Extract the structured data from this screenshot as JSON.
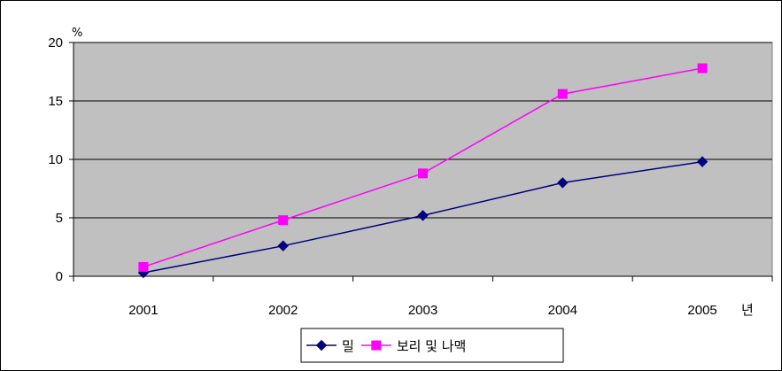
{
  "chart_data": {
    "type": "line",
    "title": "",
    "x": [
      "2001",
      "2002",
      "2003",
      "2004",
      "2005"
    ],
    "xlabel": "년",
    "ylabel": "%",
    "ylim": [
      0,
      20
    ],
    "yticks": [
      0,
      5,
      10,
      15,
      20
    ],
    "grid": "horizontal",
    "plot_background": "#c0c0c0",
    "legend_position": "bottom",
    "series": [
      {
        "name": "밀",
        "values": [
          0.3,
          2.6,
          5.2,
          8.0,
          9.8
        ],
        "color": "#000080",
        "marker": "diamond"
      },
      {
        "name": "보리 및 나맥",
        "values": [
          0.8,
          4.8,
          8.8,
          15.6,
          17.8
        ],
        "color": "#ff00ff",
        "marker": "square"
      }
    ]
  }
}
